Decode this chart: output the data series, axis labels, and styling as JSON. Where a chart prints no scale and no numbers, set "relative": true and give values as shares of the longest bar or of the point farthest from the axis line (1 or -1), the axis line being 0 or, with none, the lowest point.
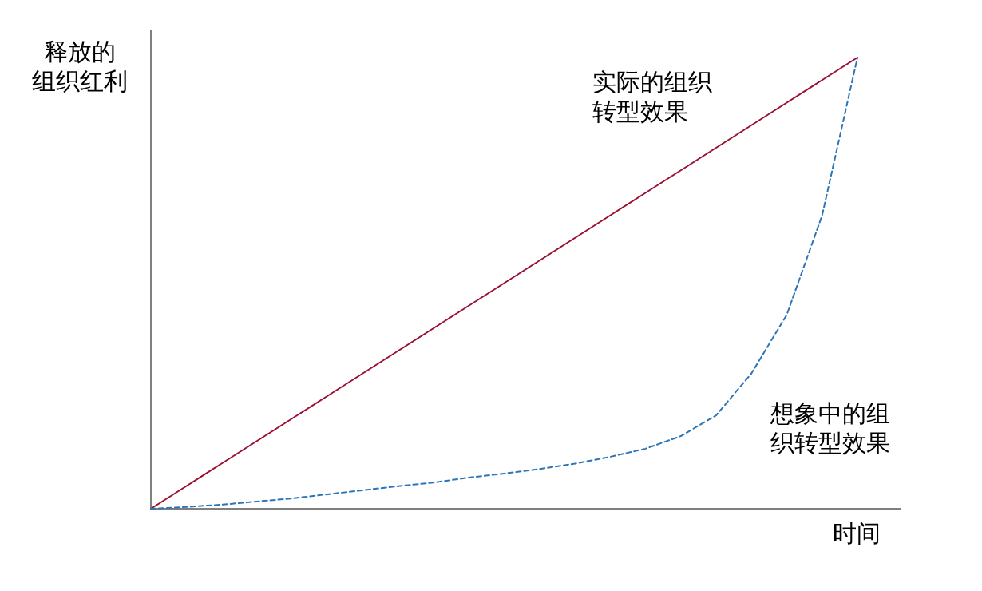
{
  "chart_data": {
    "type": "line",
    "relative": true,
    "xlabel": "时间",
    "ylabel": "释放的组织红利",
    "legend": false,
    "grid": false,
    "marker": "none",
    "categories": [
      null,
      null,
      null,
      null,
      null,
      null,
      null,
      null,
      null,
      null,
      null,
      null,
      null,
      null,
      null,
      null,
      null,
      null,
      null,
      null,
      null
    ],
    "series": [
      {
        "name": "实际的组织转型效果",
        "color": "#9b1030",
        "line_style": "solid",
        "values": [
          0,
          0.05,
          0.1,
          0.15,
          0.2,
          0.25,
          0.3,
          0.35,
          0.4,
          0.45,
          0.5,
          0.55,
          0.6,
          0.65,
          0.7,
          0.75,
          0.8,
          0.85,
          0.9,
          0.95,
          1
        ]
      },
      {
        "name": "想象中的组织转型效果",
        "color": "#2e75b6",
        "line_style": "dashed",
        "values": [
          0,
          0.004,
          0.009,
          0.016,
          0.023,
          0.032,
          0.041,
          0.05,
          0.058,
          0.069,
          0.078,
          0.088,
          0.1,
          0.115,
          0.133,
          0.161,
          0.207,
          0.3,
          0.43,
          0.65,
          1
        ]
      }
    ]
  }
}
